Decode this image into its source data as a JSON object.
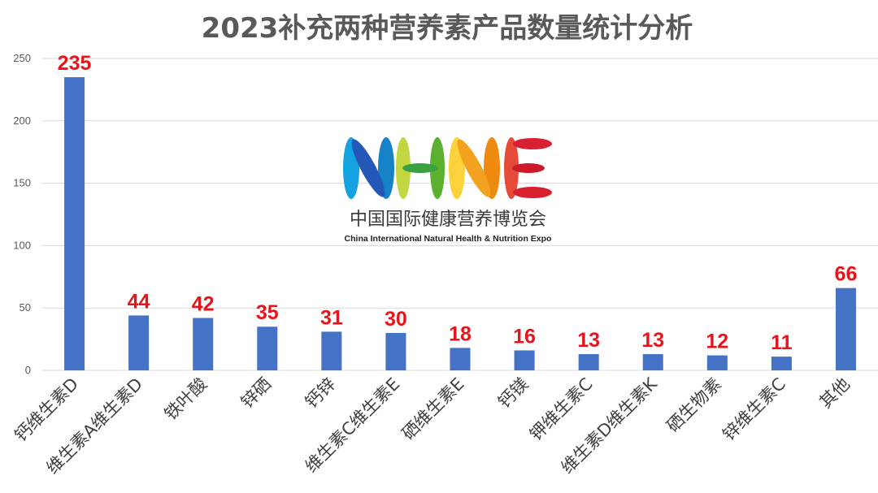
{
  "chart_data": {
    "type": "bar",
    "title": "2023补充两种营养素产品数量统计分析",
    "categories": [
      "钙维生素D",
      "维生素A维生素D",
      "铁叶酸",
      "锌硒",
      "钙锌",
      "维生素C维生素E",
      "硒维生素E",
      "钙镁",
      "钾维生素C",
      "维生素D维生素K",
      "硒生物素",
      "锌维生素C",
      "其他"
    ],
    "values": [
      235,
      44,
      42,
      35,
      31,
      30,
      18,
      16,
      13,
      13,
      12,
      11,
      66
    ],
    "ylim": [
      0,
      250
    ],
    "yticks": [
      0,
      50,
      100,
      150,
      200,
      250
    ],
    "grid": true,
    "bar_color": "#4472c4",
    "label_color": "#e8141b"
  },
  "watermark": {
    "letters": "NHNE",
    "chinese": "中国国际健康营养博览会",
    "english": "China International Natural Health & Nutrition Expo"
  }
}
